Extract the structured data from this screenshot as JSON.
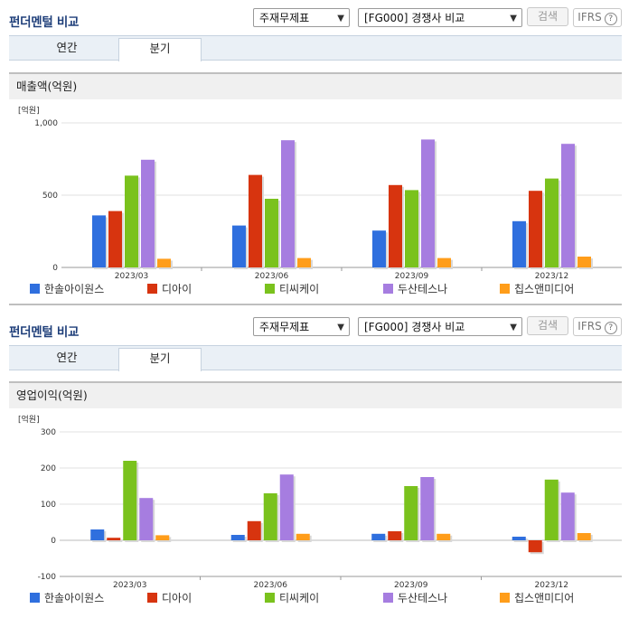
{
  "panels": [
    {
      "title": "펀더멘털 비교",
      "select1": "주재무제표",
      "select2": "[FG000] 경쟁사 비교",
      "search_label": "검색",
      "ifrs_label": "IFRS",
      "tabs": [
        {
          "label": "연간"
        },
        {
          "label": "분기"
        }
      ],
      "section_title": "매출액(억원)"
    },
    {
      "title": "펀더멘털 비교",
      "select1": "주재무제표",
      "select2": "[FG000] 경쟁사 비교",
      "search_label": "검색",
      "ifrs_label": "IFRS",
      "tabs": [
        {
          "label": "연간"
        },
        {
          "label": "분기"
        }
      ],
      "section_title": "영업이익(억원)"
    }
  ],
  "colors": [
    "#2f6fde",
    "#d7340f",
    "#7ac21d",
    "#a67de0",
    "#ff9d1a"
  ],
  "chart_data": [
    {
      "type": "bar",
      "unit_label": "[억원]",
      "categories": [
        "2023/03",
        "2023/06",
        "2023/09",
        "2023/12"
      ],
      "ylim": [
        0,
        1000
      ],
      "yticks": [
        0,
        500,
        1000
      ],
      "ytick_labels": [
        "0",
        "500",
        "1,000"
      ],
      "series": [
        {
          "name": "한솔아이원스",
          "values": [
            360,
            290,
            255,
            320
          ]
        },
        {
          "name": "디아이",
          "values": [
            390,
            640,
            570,
            530
          ]
        },
        {
          "name": "티씨케이",
          "values": [
            635,
            475,
            535,
            615
          ]
        },
        {
          "name": "두산테스나",
          "values": [
            745,
            880,
            885,
            855
          ]
        },
        {
          "name": "칩스앤미디어",
          "values": [
            60,
            65,
            65,
            75
          ]
        }
      ]
    },
    {
      "type": "bar",
      "unit_label": "[억원]",
      "categories": [
        "2023/03",
        "2023/06",
        "2023/09",
        "2023/12"
      ],
      "ylim": [
        -100,
        300
      ],
      "yticks": [
        -100,
        0,
        100,
        200,
        300
      ],
      "ytick_labels": [
        "-100",
        "0",
        "100",
        "200",
        "300"
      ],
      "series": [
        {
          "name": "한솔아이원스",
          "values": [
            30,
            15,
            18,
            10
          ]
        },
        {
          "name": "디아이",
          "values": [
            7,
            53,
            25,
            -33
          ]
        },
        {
          "name": "티씨케이",
          "values": [
            220,
            130,
            150,
            168
          ]
        },
        {
          "name": "두산테스나",
          "values": [
            117,
            182,
            175,
            132
          ]
        },
        {
          "name": "칩스앤미디어",
          "values": [
            14,
            18,
            18,
            20
          ]
        }
      ]
    }
  ]
}
